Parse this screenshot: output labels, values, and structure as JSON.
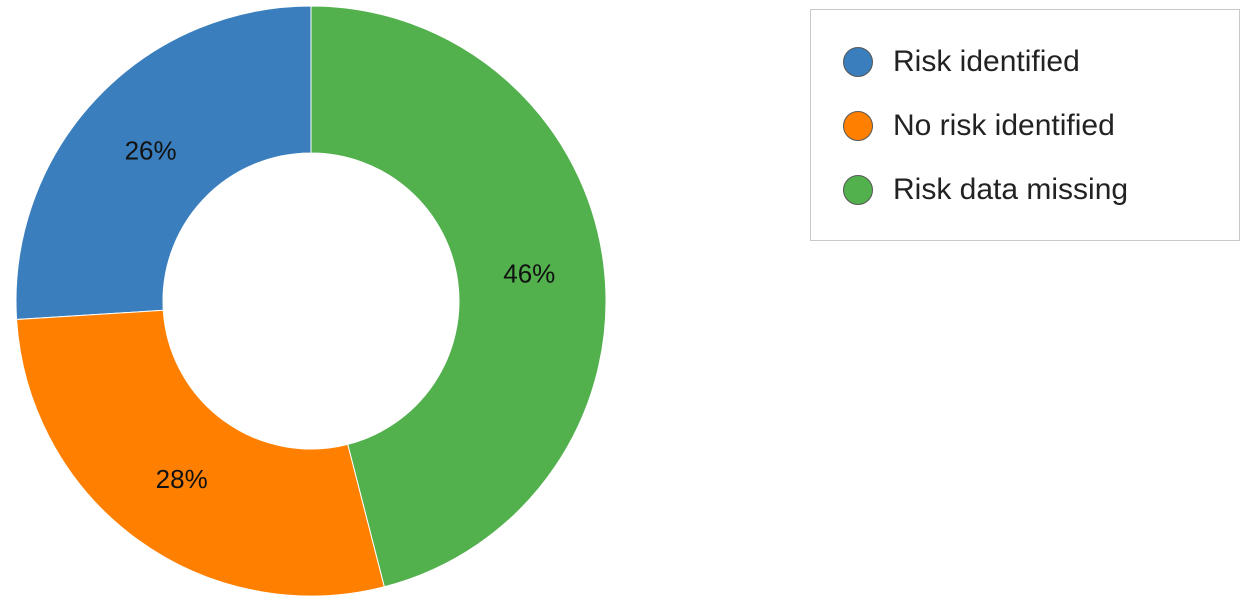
{
  "chart_data": {
    "type": "pie",
    "donut": true,
    "categories": [
      "Risk identified",
      "No risk identified",
      "Risk data missing"
    ],
    "values": [
      26,
      28,
      46
    ],
    "value_labels": [
      "26%",
      "28%",
      "46%"
    ],
    "colors": [
      "#3a7ebd",
      "#ff8000",
      "#52b04d"
    ],
    "title": "",
    "legend_position": "top-right"
  }
}
